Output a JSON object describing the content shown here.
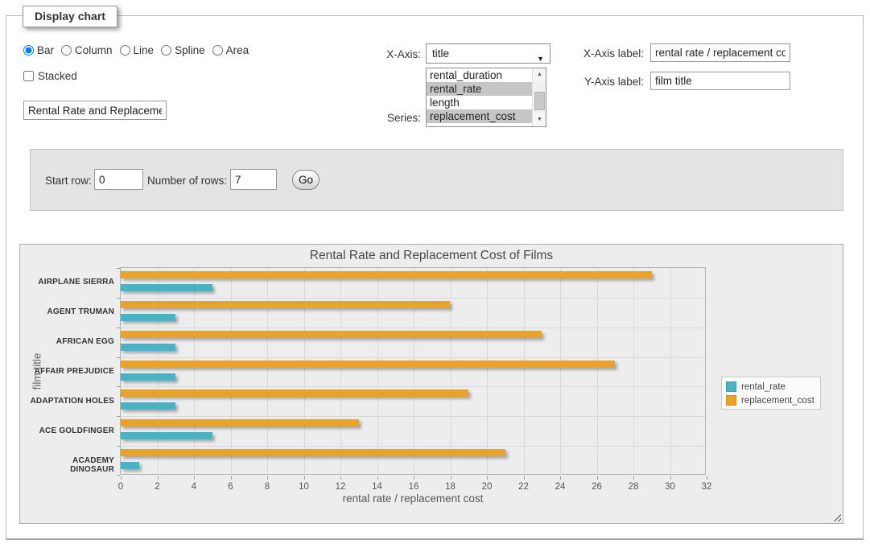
{
  "panel": {
    "title": "Display chart"
  },
  "icons": {
    "select_arrow": "▼",
    "scroll_up": "▲",
    "scroll_down": "▼"
  },
  "controls": {
    "chart_types": [
      {
        "label": "Bar",
        "selected": true
      },
      {
        "label": "Column",
        "selected": false
      },
      {
        "label": "Line",
        "selected": false
      },
      {
        "label": "Spline",
        "selected": false
      },
      {
        "label": "Area",
        "selected": false
      }
    ],
    "stacked": {
      "label": "Stacked",
      "checked": false
    },
    "chart_title_input": {
      "value": "Rental Rate and Replacement Cost of Films"
    },
    "x_axis": {
      "label": "X-Axis:",
      "selected": "title"
    },
    "series": {
      "label": "Series:",
      "options": [
        {
          "label": "rental_duration",
          "selected": false
        },
        {
          "label": "rental_rate",
          "selected": true
        },
        {
          "label": "length",
          "selected": false
        },
        {
          "label": "replacement_cost",
          "selected": true
        }
      ]
    },
    "x_axis_label": {
      "label": "X-Axis label:",
      "value": "rental rate / replacement cost"
    },
    "y_axis_label": {
      "label": "Y-Axis label:",
      "value": "film title"
    }
  },
  "pagination": {
    "start_row_label": "Start row:",
    "start_row_value": "0",
    "num_rows_label": "Number of rows:",
    "num_rows_value": "7",
    "go_label": "Go"
  },
  "chart_data": {
    "type": "bar",
    "orientation": "horizontal",
    "title": "Rental Rate and Replacement Cost of Films",
    "xlabel": "rental rate / replacement cost",
    "ylabel": "film title",
    "categories": [
      "AIRPLANE SIERRA",
      "AGENT TRUMAN",
      "AFRICAN EGG",
      "AFFAIR PREJUDICE",
      "ADAPTATION HOLES",
      "ACE GOLDFINGER",
      "ACADEMY DINOSAUR"
    ],
    "series": [
      {
        "name": "rental_rate",
        "color": "#4bb2c5",
        "values": [
          4.99,
          2.99,
          2.99,
          2.99,
          2.99,
          4.99,
          0.99
        ]
      },
      {
        "name": "replacement_cost",
        "color": "#EAA228",
        "values": [
          28.99,
          17.99,
          22.99,
          26.99,
          18.99,
          12.99,
          20.99
        ]
      }
    ],
    "xlim": [
      0,
      32
    ],
    "xticks": [
      0,
      2,
      4,
      6,
      8,
      10,
      12,
      14,
      16,
      18,
      20,
      22,
      24,
      26,
      28,
      30,
      32
    ],
    "grid": true,
    "legend_position": "right",
    "background": "#ededed"
  }
}
